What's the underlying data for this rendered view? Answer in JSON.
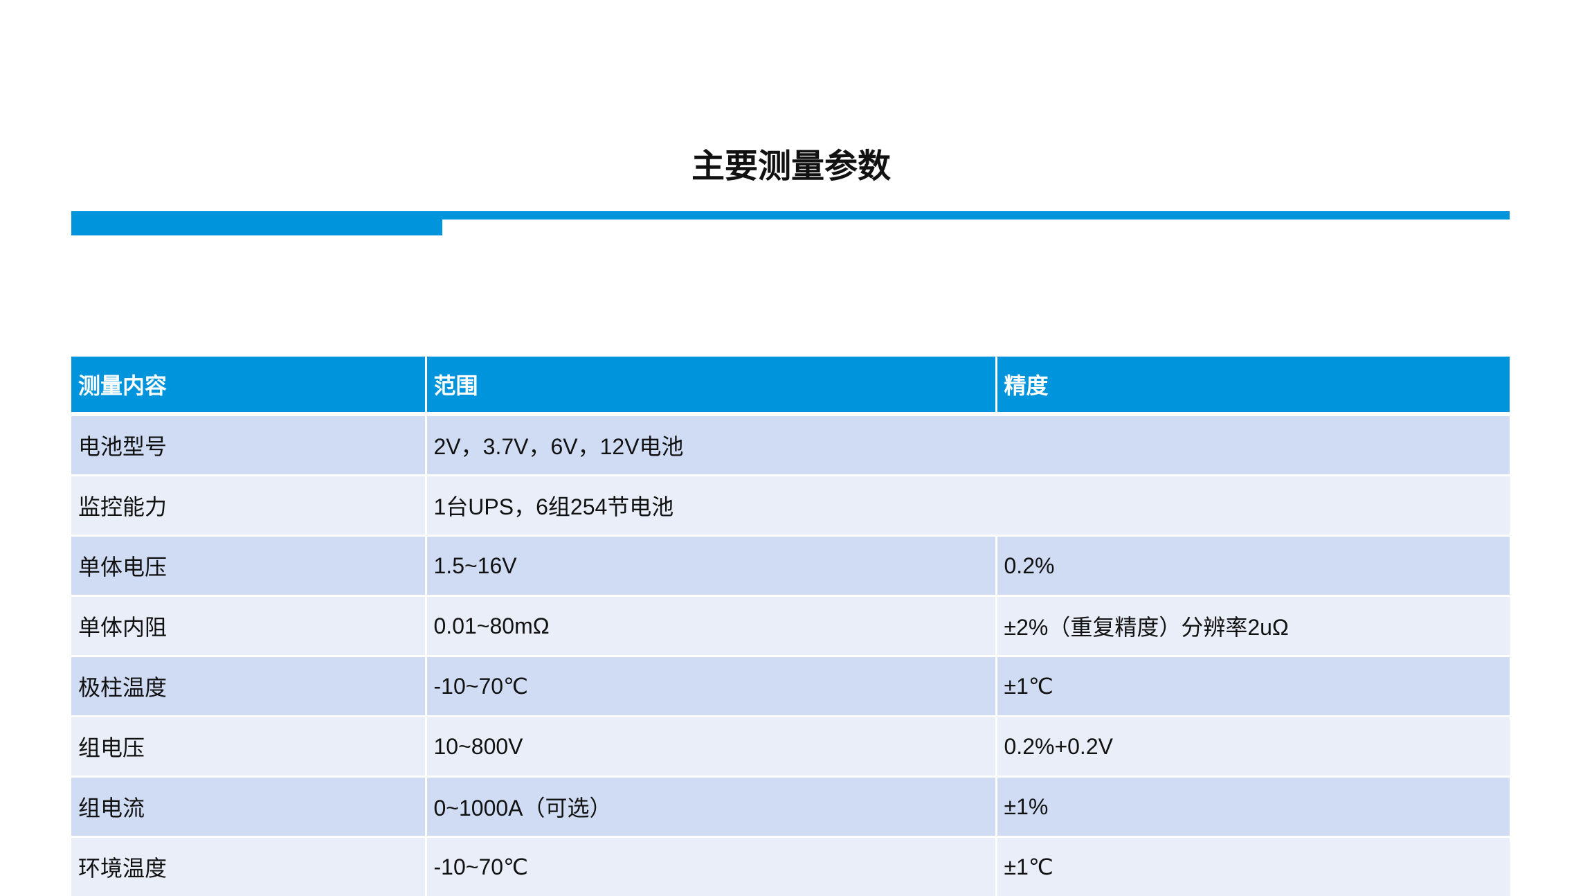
{
  "title": "主要测量参数",
  "accent_color": "#0094DC",
  "table": {
    "headers": [
      "测量内容",
      "范围",
      "精度"
    ],
    "rows": [
      [
        "电池型号",
        "2V，3.7V，6V，12V电池"
      ],
      [
        "监控能力",
        "1台UPS，6组254节电池"
      ],
      [
        "单体电压",
        "1.5~16V",
        "0.2%"
      ],
      [
        "单体内阻",
        "0.01~80mΩ",
        "±2%（重复精度）分辨率2uΩ"
      ],
      [
        "极柱温度",
        "-10~70℃",
        "±1℃"
      ],
      [
        "组电压",
        "10~800V",
        "0.2%+0.2V"
      ],
      [
        "组电流",
        "0~1000A（可选）",
        "±1%"
      ],
      [
        "环境温度",
        "-10~70℃",
        "±1℃"
      ]
    ]
  }
}
